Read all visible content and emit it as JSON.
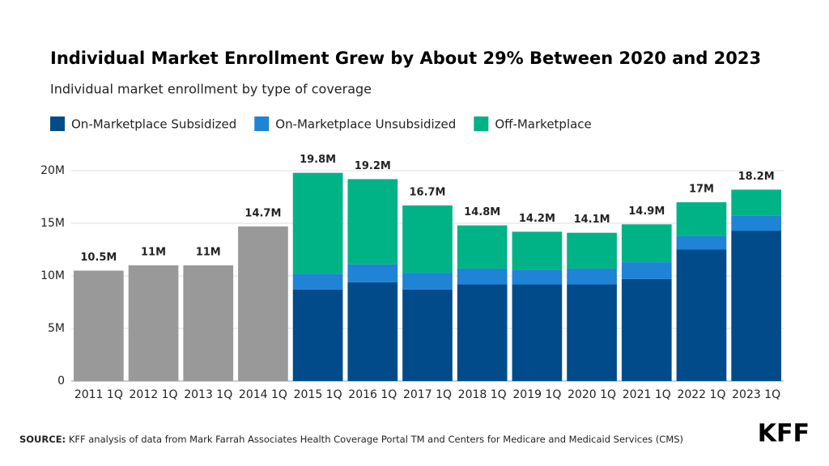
{
  "chart_data": {
    "type": "stacked-bar",
    "title": "Individual Market Enrollment Grew by About 29% Between 2020 and 2023",
    "subtitle": "Individual market enrollment by type of coverage",
    "categories": [
      "2011 1Q",
      "2012 1Q",
      "2013 1Q",
      "2014 1Q",
      "2015 1Q",
      "2016 1Q",
      "2017 1Q",
      "2018 1Q",
      "2019 1Q",
      "2020 1Q",
      "2021 1Q",
      "2022 1Q",
      "2023 1Q"
    ],
    "series": [
      {
        "name": "On-Marketplace Subsidized",
        "color": "#024b8a",
        "values": [
          null,
          null,
          null,
          null,
          8.7,
          9.4,
          8.7,
          9.2,
          9.2,
          9.2,
          9.7,
          12.5,
          14.3
        ]
      },
      {
        "name": "On-Marketplace Unsubsidized",
        "color": "#1f83d6",
        "values": [
          null,
          null,
          null,
          null,
          1.5,
          1.7,
          1.6,
          1.5,
          1.4,
          1.5,
          1.6,
          1.3,
          1.4
        ]
      },
      {
        "name": "Off-Marketplace",
        "color": "#00b386",
        "values": [
          null,
          null,
          null,
          null,
          9.6,
          8.1,
          6.4,
          4.1,
          3.6,
          3.4,
          3.6,
          3.2,
          2.5
        ]
      }
    ],
    "totals": {
      "color": "#999999",
      "values": [
        10.5,
        11,
        11,
        14.7,
        19.8,
        19.2,
        16.7,
        14.8,
        14.2,
        14.1,
        14.9,
        17,
        18.2
      ],
      "value_labels": [
        "10.5M",
        "11M",
        "11M",
        "14.7M",
        "19.8M",
        "19.2M",
        "16.7M",
        "14.8M",
        "14.2M",
        "14.1M",
        "14.9M",
        "17M",
        "18.2M"
      ]
    },
    "ylim": [
      0,
      20
    ],
    "yticks": [
      0,
      {
        "value": 5,
        "label": "5M"
      },
      {
        "value": 10,
        "label": "10M"
      },
      {
        "value": 15,
        "label": "15M"
      },
      {
        "value": 20,
        "label": "20M"
      }
    ],
    "grid": true,
    "source_label": "SOURCE:",
    "source": "KFF analysis of data from Mark Farrah Associates Health Coverage Portal TM and Centers for Medicare and Medicaid Services (CMS)",
    "logo": "KFF"
  }
}
